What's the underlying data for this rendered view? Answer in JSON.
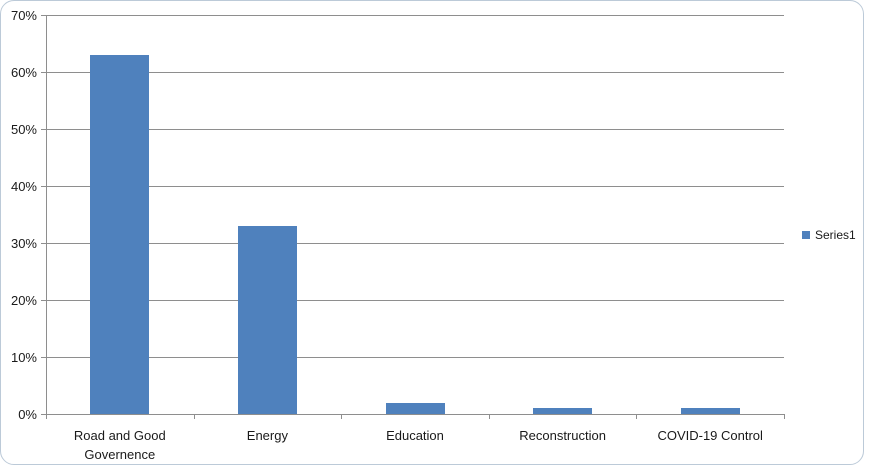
{
  "chart_data": {
    "type": "bar",
    "title": "",
    "xlabel": "",
    "ylabel": "",
    "categories": [
      "Road and Good Governence",
      "Energy",
      "Education",
      "Reconstruction",
      "COVID-19 Control"
    ],
    "series": [
      {
        "name": "Series1",
        "values": [
          63,
          33,
          2,
          1,
          1
        ]
      }
    ],
    "ylim": [
      0,
      70
    ],
    "ytick_step": 10,
    "yticks": [
      "0%",
      "10%",
      "20%",
      "30%",
      "40%",
      "50%",
      "60%",
      "70%"
    ],
    "grid": true,
    "legend_position": "right",
    "colors": {
      "bar": "#4f81bd",
      "gridline": "#8e8e8e",
      "axis": "#8e8e8e",
      "text": "#1a1a1a",
      "frame_border": "#bccad8",
      "background": "#ffffff"
    }
  }
}
